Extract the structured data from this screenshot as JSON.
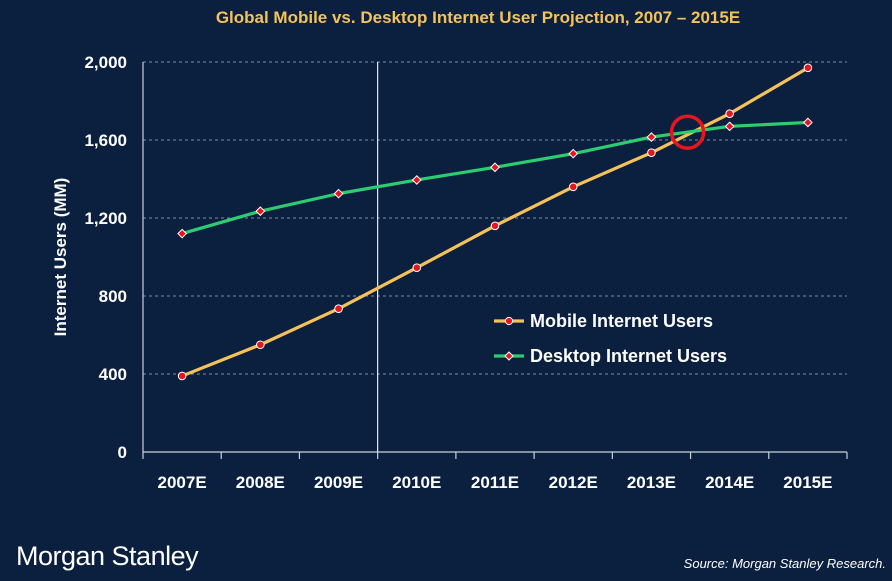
{
  "chart_data": {
    "type": "line",
    "title": "Global Mobile vs. Desktop Internet User Projection, 2007 – 2015E",
    "ylabel": "Internet Users (MM)",
    "xlabel": "",
    "categories": [
      "2007E",
      "2008E",
      "2009E",
      "2010E",
      "2011E",
      "2012E",
      "2013E",
      "2014E",
      "2015E"
    ],
    "yticks": [
      0,
      400,
      800,
      1200,
      1600,
      2000
    ],
    "ytick_labels": [
      "0",
      "400",
      "800",
      "1,200",
      "1,600",
      "2,000"
    ],
    "ylim": [
      0,
      2000
    ],
    "grid": "horizontal-dashed",
    "legend": "center-right",
    "series": [
      {
        "name": "Mobile Internet Users",
        "color": "#f5c25a",
        "marker": "circle",
        "values": [
          390,
          550,
          735,
          945,
          1160,
          1360,
          1535,
          1735,
          1970
        ]
      },
      {
        "name": "Desktop Internet Users",
        "color": "#2ecc71",
        "marker": "diamond",
        "values": [
          1120,
          1235,
          1325,
          1395,
          1460,
          1530,
          1615,
          1670,
          1690
        ]
      }
    ],
    "annotations": {
      "highlight_circle": {
        "x": "2013E–2014E",
        "y": 1640,
        "color": "#e8141e"
      },
      "divider_after": "2009E"
    }
  },
  "colors": {
    "background": "#0b1f3f",
    "title": "#f5c25a",
    "grid": "#7f8ea8",
    "axis": "#c9d0dc"
  },
  "footer": {
    "brand": "Morgan Stanley",
    "source": "Source: Morgan Stanley Research."
  }
}
